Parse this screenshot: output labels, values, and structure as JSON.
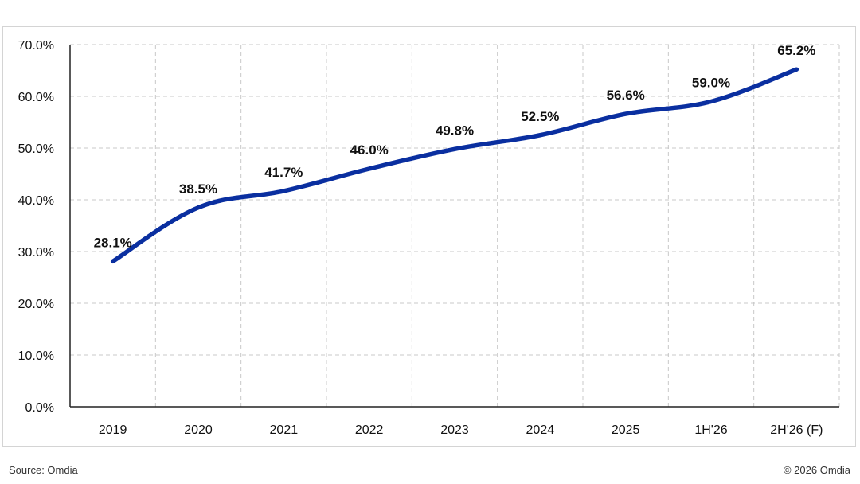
{
  "chart_data": {
    "type": "line",
    "categories": [
      "2019",
      "2020",
      "2021",
      "2022",
      "2023",
      "2024",
      "2025",
      "1H'26",
      "2H'26 (F)"
    ],
    "values": [
      28.1,
      38.5,
      41.7,
      46.0,
      49.8,
      52.5,
      56.6,
      59.0,
      65.2
    ],
    "data_labels": [
      "28.1%",
      "38.5%",
      "41.7%",
      "46.0%",
      "49.8%",
      "52.5%",
      "56.6%",
      "59.0%",
      "65.2%"
    ],
    "ylim": [
      0,
      70
    ],
    "y_ticks": [
      0,
      10,
      20,
      30,
      40,
      50,
      60,
      70
    ],
    "y_tick_labels": [
      "0.0%",
      "10.0%",
      "20.0%",
      "30.0%",
      "40.0%",
      "50.0%",
      "60.0%",
      "70.0%"
    ],
    "grid": true,
    "line_color": "#0a2fa0",
    "title": "",
    "xlabel": "",
    "ylabel": ""
  },
  "footer": {
    "source": "Source: Omdia",
    "copyright": "© 2026 Omdia"
  }
}
